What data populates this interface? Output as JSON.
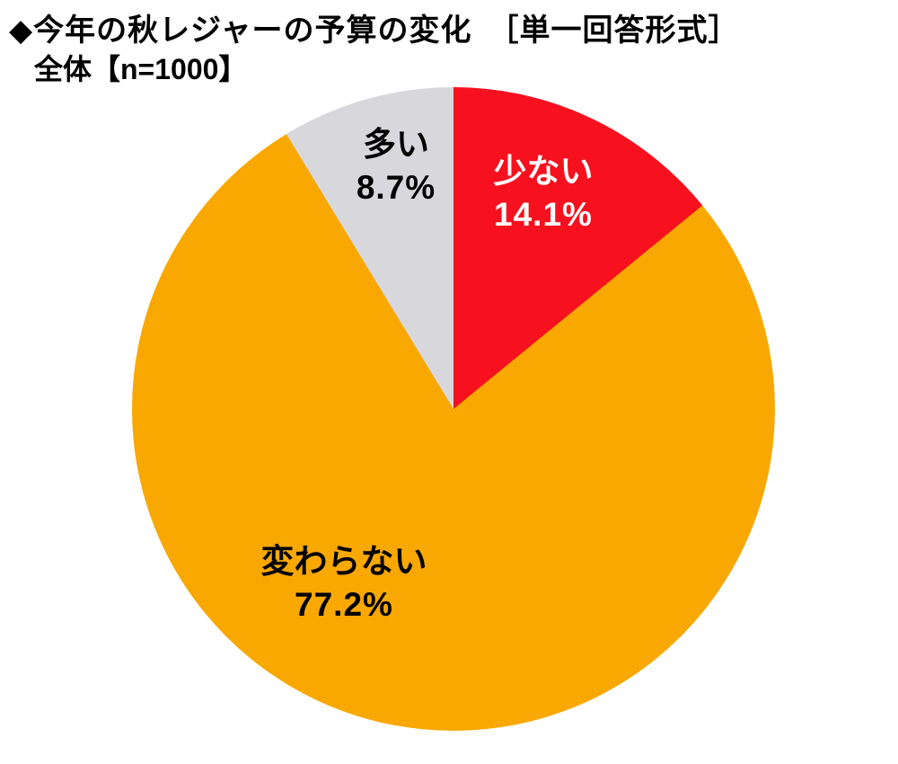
{
  "header": {
    "title": "◆今年の秋レジャーの予算の変化　［単一回答形式］",
    "subtitle": "全体【n=1000】"
  },
  "chart_data": {
    "type": "pie",
    "title": "今年の秋レジャーの予算の変化",
    "answer_format": "単一回答形式",
    "population_label": "全体",
    "n": 1000,
    "start_angle_deg": 0,
    "direction": "clockwise",
    "slices": [
      {
        "label": "少ない",
        "value": 14.1,
        "value_text": "14.1%",
        "color": "#f7101e",
        "text_color": "#ffffff"
      },
      {
        "label": "変わらない",
        "value": 77.2,
        "value_text": "77.2%",
        "color": "#f8a800",
        "text_color": "#000000"
      },
      {
        "label": "多い",
        "value": 8.7,
        "value_text": "8.7%",
        "color": "#d8d8dc",
        "text_color": "#000000"
      }
    ],
    "legend_position": "none",
    "grid": false
  }
}
